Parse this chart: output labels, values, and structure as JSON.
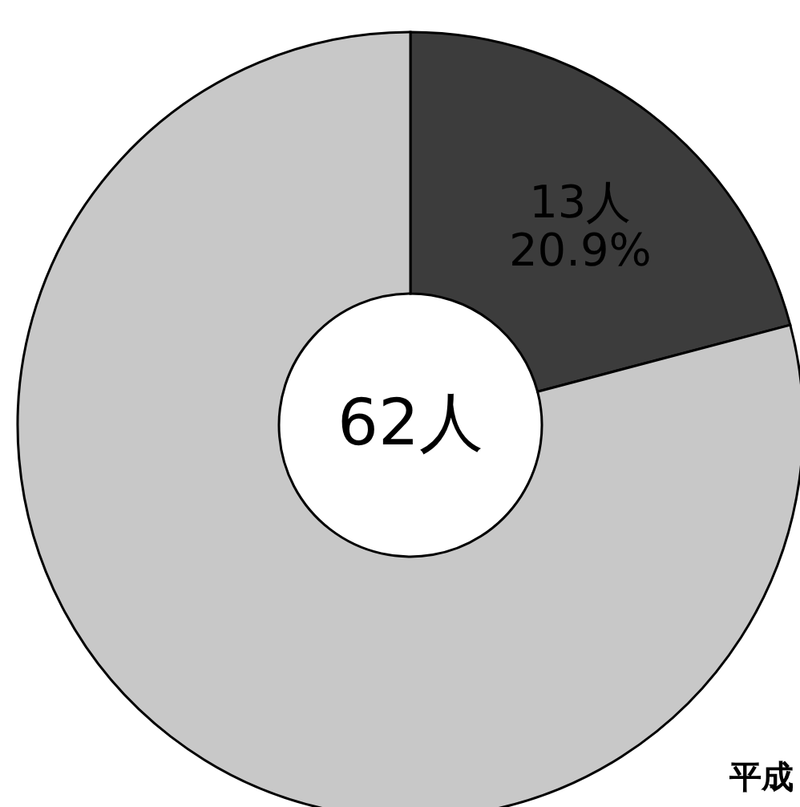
{
  "chart_data": {
    "type": "donut",
    "categories": [
      null,
      null
    ],
    "values": [
      20.9,
      79.1
    ],
    "colors": [
      "#3c3c3c",
      "#c8c8c8"
    ],
    "value_labels": [
      "13人\n20.9%",
      null
    ],
    "annotations": [
      "62人",
      "平成"
    ]
  }
}
